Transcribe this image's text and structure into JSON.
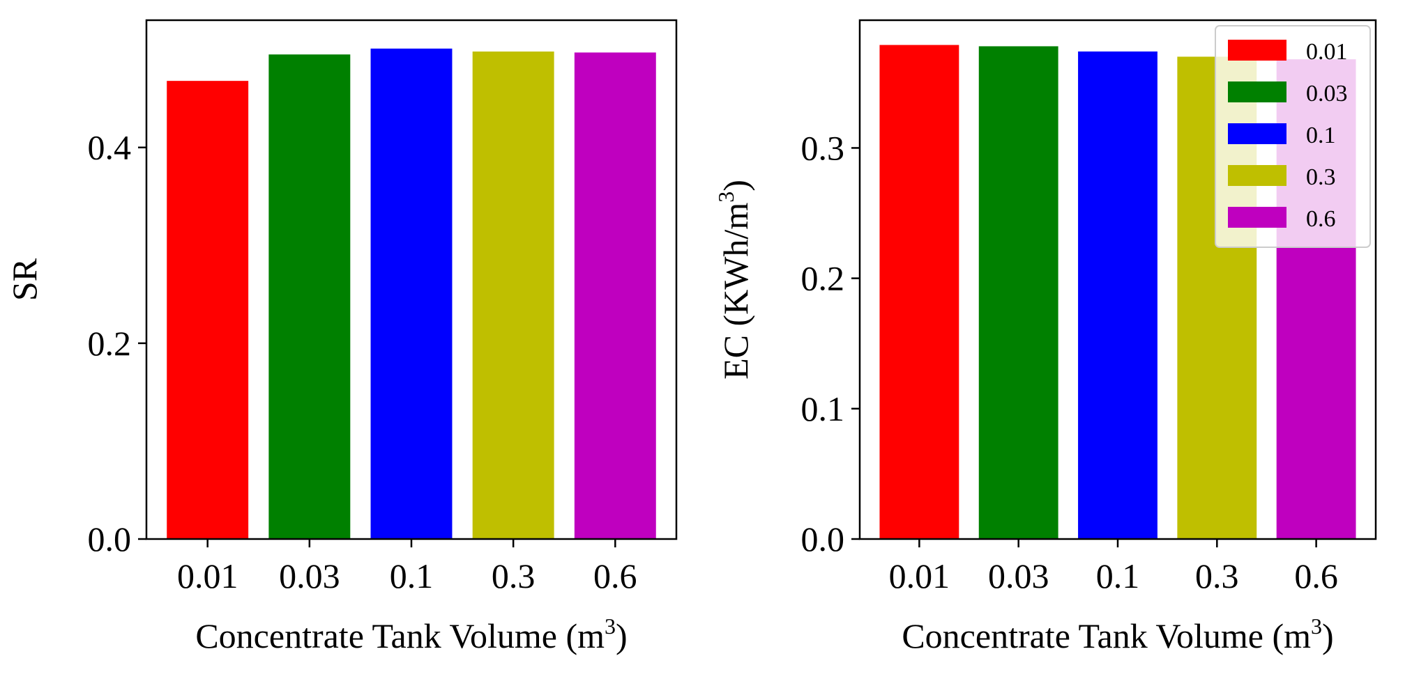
{
  "chart_data": [
    {
      "type": "bar",
      "categories": [
        "0.01",
        "0.03",
        "0.1",
        "0.3",
        "0.6"
      ],
      "values": [
        0.468,
        0.495,
        0.501,
        0.498,
        0.497
      ],
      "colors": [
        "#ff0000",
        "#008000",
        "#0000ff",
        "#bfbf00",
        "#bf00bf"
      ],
      "xlabel": "Concentrate Tank Volume (m",
      "xlabel_sup": "3",
      "xlabel_suffix": ")",
      "ylabel": "SR",
      "ylim": [
        0,
        0.53
      ],
      "yticks": [
        0.0,
        0.2,
        0.4
      ],
      "ytick_labels": [
        "0.0",
        "0.2",
        "0.4"
      ],
      "grid": false,
      "legend": null
    },
    {
      "type": "bar",
      "categories": [
        "0.01",
        "0.03",
        "0.1",
        "0.3",
        "0.6"
      ],
      "values": [
        0.379,
        0.378,
        0.374,
        0.37,
        0.368
      ],
      "colors": [
        "#ff0000",
        "#008000",
        "#0000ff",
        "#bfbf00",
        "#bf00bf"
      ],
      "xlabel": "Concentrate Tank Volume (m",
      "xlabel_sup": "3",
      "xlabel_suffix": ")",
      "ylabel": "EC (KWh/m",
      "ylabel_sup": "3",
      "ylabel_suffix": ")",
      "ylim": [
        0,
        0.398
      ],
      "yticks": [
        0.0,
        0.1,
        0.2,
        0.3
      ],
      "ytick_labels": [
        "0.0",
        "0.1",
        "0.2",
        "0.3"
      ],
      "grid": false,
      "legend": {
        "placement": "top-right",
        "entries": [
          "0.01",
          "0.03",
          "0.1",
          "0.3",
          "0.6"
        ]
      }
    }
  ]
}
